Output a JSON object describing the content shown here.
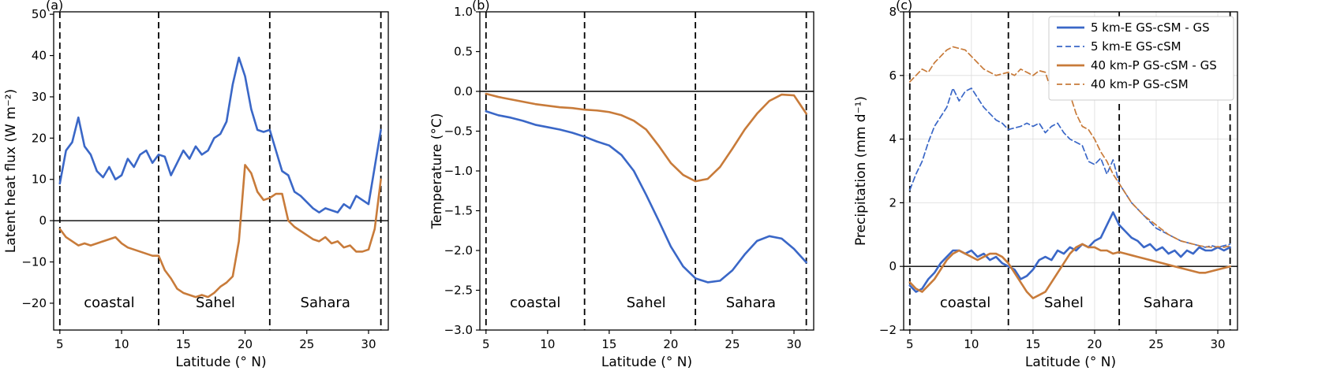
{
  "colors": {
    "blue": "#3a67c7",
    "orange": "#c87b3a",
    "axis": "#000000",
    "grid": "#dcdcdc",
    "legend_border": "#cccccc",
    "legend_bg": "#ffffff"
  },
  "chart_data": [
    {
      "type": "line",
      "panel_label": "(a)",
      "xlabel": "Latitude (° N)",
      "ylabel": "Latent heat flux (W m⁻²)",
      "xlim": [
        4.5,
        31.6
      ],
      "ylim": [
        -26.5,
        50.6
      ],
      "xtick_values": [
        5,
        10,
        15,
        20,
        25,
        30
      ],
      "xtick_labels": [
        "5",
        "10",
        "15",
        "20",
        "25",
        "30"
      ],
      "ytick_values": [
        50,
        40,
        30,
        20,
        10,
        0,
        -10,
        -20
      ],
      "ytick_labels": [
        "50",
        "40",
        "30",
        "20",
        "10",
        "0",
        "−10",
        "−20"
      ],
      "vlines": [
        5,
        13,
        22,
        31
      ],
      "hline": 0,
      "grid": false,
      "region_labels": [
        {
          "text": "coastal",
          "x": 9
        },
        {
          "text": "Sahel",
          "x": 17.6
        },
        {
          "text": "Sahara",
          "x": 26.5
        }
      ],
      "x_start": 5,
      "x_step": 0.5,
      "series": [
        {
          "color": "blue",
          "style": "solid",
          "y": [
            9,
            17,
            19,
            25,
            18,
            16,
            12,
            10.5,
            13,
            10,
            11,
            15,
            13,
            16,
            17,
            14,
            16,
            15.5,
            11,
            14,
            17,
            15,
            18,
            16,
            17,
            20,
            21,
            24,
            33,
            39.5,
            35,
            27,
            22,
            21.5,
            22,
            17,
            12,
            11,
            7,
            6,
            4.5,
            3,
            2,
            3,
            2.5,
            2,
            4,
            3,
            6,
            5,
            4,
            13,
            22
          ]
        },
        {
          "color": "orange",
          "style": "solid",
          "y": [
            -2,
            -4,
            -5,
            -6,
            -5.5,
            -6,
            -5.5,
            -5,
            -4.5,
            -4,
            -5.5,
            -6.5,
            -7,
            -7.5,
            -8,
            -8.5,
            -8.5,
            -12,
            -14,
            -16.5,
            -17.5,
            -18,
            -18.5,
            -18,
            -18.5,
            -17.5,
            -16,
            -15,
            -13.5,
            -5,
            13.5,
            11.5,
            7,
            5,
            5.5,
            6.5,
            6.5,
            0,
            -1.5,
            -2.5,
            -3.5,
            -4.5,
            -5,
            -4,
            -5.5,
            -5,
            -6.5,
            -6,
            -7.5,
            -7.5,
            -7,
            -2,
            10
          ]
        }
      ]
    },
    {
      "type": "line",
      "panel_label": "(b)",
      "xlabel": "Latitude (° N)",
      "ylabel": "Temperature (°C)",
      "xlim": [
        4.5,
        31.6
      ],
      "ylim": [
        -3.0,
        1.0
      ],
      "xtick_values": [
        5,
        10,
        15,
        20,
        25,
        30
      ],
      "xtick_labels": [
        "5",
        "10",
        "15",
        "20",
        "25",
        "30"
      ],
      "ytick_values": [
        1.0,
        0.5,
        0.0,
        -0.5,
        -1.0,
        -1.5,
        -2.0,
        -2.5,
        -3.0
      ],
      "ytick_labels": [
        "1.0",
        "0.5",
        "0.0",
        "−0.5",
        "−1.0",
        "−1.5",
        "−2.0",
        "−2.5",
        "−3.0"
      ],
      "vlines": [
        5,
        13,
        22,
        31
      ],
      "hline": 0,
      "grid": false,
      "region_labels": [
        {
          "text": "coastal",
          "x": 9
        },
        {
          "text": "Sahel",
          "x": 18
        },
        {
          "text": "Sahara",
          "x": 26.5
        }
      ],
      "x_start": 5,
      "x_step": 1,
      "series": [
        {
          "color": "blue",
          "style": "solid",
          "y": [
            -0.25,
            -0.3,
            -0.33,
            -0.37,
            -0.42,
            -0.45,
            -0.48,
            -0.52,
            -0.57,
            -0.63,
            -0.68,
            -0.8,
            -1.0,
            -1.3,
            -1.62,
            -1.95,
            -2.2,
            -2.35,
            -2.4,
            -2.38,
            -2.25,
            -2.05,
            -1.88,
            -1.82,
            -1.85,
            -1.98,
            -2.15
          ]
        },
        {
          "color": "orange",
          "style": "solid",
          "y": [
            -0.03,
            -0.07,
            -0.1,
            -0.13,
            -0.16,
            -0.18,
            -0.2,
            -0.21,
            -0.23,
            -0.24,
            -0.26,
            -0.3,
            -0.37,
            -0.48,
            -0.68,
            -0.9,
            -1.05,
            -1.13,
            -1.1,
            -0.95,
            -0.72,
            -0.48,
            -0.28,
            -0.12,
            -0.04,
            -0.05,
            -0.28
          ]
        }
      ]
    },
    {
      "type": "line",
      "panel_label": "(c)",
      "xlabel": "Latitude (° N)",
      "ylabel": "Precipitation (mm d⁻¹)",
      "xlim": [
        4.5,
        31.6
      ],
      "ylim": [
        -2,
        8
      ],
      "xtick_values": [
        5,
        10,
        15,
        20,
        25,
        30
      ],
      "xtick_labels": [
        "5",
        "10",
        "15",
        "20",
        "25",
        "30"
      ],
      "ytick_values": [
        8,
        6,
        4,
        2,
        0,
        -2
      ],
      "ytick_labels": [
        "8",
        "6",
        "4",
        "2",
        "0",
        "−2"
      ],
      "vlines": [
        5,
        13,
        22,
        31
      ],
      "hline": 0,
      "grid": true,
      "legend": {
        "position": "upper right"
      },
      "region_labels": [
        {
          "text": "coastal",
          "x": 9.5
        },
        {
          "text": "Sahel",
          "x": 17.5
        },
        {
          "text": "Sahara",
          "x": 26
        }
      ],
      "x_start": 5,
      "x_step": 0.5,
      "series": [
        {
          "label": "5 km-E GS-cSM - GS",
          "color": "blue",
          "style": "solid",
          "y": [
            -0.6,
            -0.8,
            -0.7,
            -0.4,
            -0.2,
            0.1,
            0.3,
            0.5,
            0.5,
            0.4,
            0.5,
            0.3,
            0.4,
            0.2,
            0.3,
            0.1,
            0,
            -0.1,
            -0.4,
            -0.3,
            -0.1,
            0.2,
            0.3,
            0.2,
            0.5,
            0.4,
            0.6,
            0.5,
            0.7,
            0.6,
            0.8,
            0.9,
            1.3,
            1.7,
            1.3,
            1.1,
            0.9,
            0.8,
            0.6,
            0.7,
            0.5,
            0.6,
            0.4,
            0.5,
            0.3,
            0.5,
            0.4,
            0.6,
            0.5,
            0.5,
            0.6,
            0.5,
            0.6
          ]
        },
        {
          "label": "5 km-E GS-cSM",
          "color": "blue",
          "style": "dashed",
          "y": [
            2.4,
            2.9,
            3.3,
            3.9,
            4.4,
            4.7,
            5.0,
            5.6,
            5.2,
            5.5,
            5.6,
            5.3,
            5.0,
            4.8,
            4.6,
            4.5,
            4.3,
            4.35,
            4.4,
            4.5,
            4.4,
            4.5,
            4.2,
            4.4,
            4.5,
            4.2,
            4.0,
            3.9,
            3.8,
            3.3,
            3.2,
            3.4,
            2.9,
            3.35,
            2.6,
            2.3,
            2.0,
            1.8,
            1.6,
            1.4,
            1.2,
            1.1,
            1.0,
            0.9,
            0.8,
            0.75,
            0.7,
            0.65,
            0.6,
            0.65,
            0.6,
            0.65,
            0.7
          ]
        },
        {
          "label": "40 km-P GS-cSM - GS",
          "color": "orange",
          "style": "solid",
          "y": [
            -0.5,
            -0.7,
            -0.8,
            -0.6,
            -0.4,
            -0.1,
            0.2,
            0.4,
            0.5,
            0.4,
            0.3,
            0.2,
            0.3,
            0.4,
            0.4,
            0.3,
            0.1,
            -0.2,
            -0.5,
            -0.8,
            -1.0,
            -0.9,
            -0.8,
            -0.5,
            -0.2,
            0.1,
            0.4,
            0.6,
            0.7,
            0.6,
            0.6,
            0.5,
            0.5,
            0.4,
            0.45,
            0.4,
            0.35,
            0.3,
            0.25,
            0.2,
            0.15,
            0.1,
            0.05,
            0.0,
            -0.05,
            -0.1,
            -0.15,
            -0.2,
            -0.2,
            -0.15,
            -0.1,
            -0.05,
            0.0
          ]
        },
        {
          "label": "40 km-P GS-cSM",
          "color": "orange",
          "style": "dashed",
          "y": [
            5.8,
            6.0,
            6.2,
            6.1,
            6.4,
            6.6,
            6.8,
            6.9,
            6.85,
            6.8,
            6.6,
            6.4,
            6.2,
            6.1,
            6.0,
            6.05,
            6.1,
            6.0,
            6.2,
            6.1,
            6.0,
            6.15,
            6.1,
            5.5,
            5.4,
            5.35,
            5.4,
            4.8,
            4.4,
            4.3,
            4.0,
            3.6,
            3.3,
            2.9,
            2.6,
            2.3,
            2.0,
            1.8,
            1.6,
            1.45,
            1.3,
            1.15,
            1.0,
            0.9,
            0.8,
            0.75,
            0.7,
            0.65,
            0.62,
            0.6,
            0.62,
            0.6,
            0.65
          ]
        }
      ]
    }
  ]
}
